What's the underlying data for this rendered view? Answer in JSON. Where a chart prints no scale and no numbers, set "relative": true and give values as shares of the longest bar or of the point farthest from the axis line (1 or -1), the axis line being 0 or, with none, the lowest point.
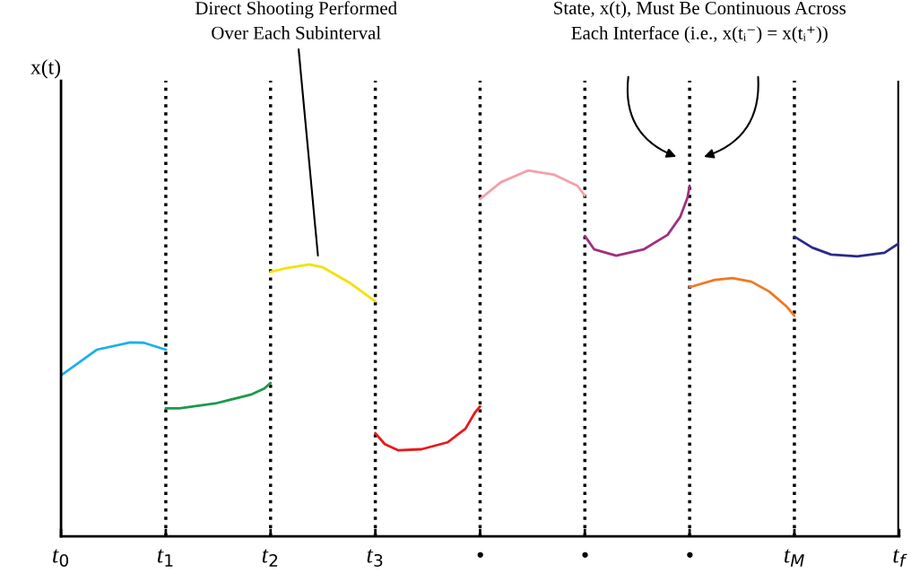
{
  "chart_data": {
    "type": "line",
    "relative": true,
    "ylabel": "x(t)",
    "xlim": [
      0,
      8
    ],
    "xticks": [
      {
        "value": 0,
        "label": "t$_{0}$"
      },
      {
        "value": 1,
        "label": "t$_{1}$"
      },
      {
        "value": 2,
        "label": "t$_{2}$"
      },
      {
        "value": 3,
        "label": "t$_{3}$"
      },
      {
        "value": 4,
        "label": "•"
      },
      {
        "value": 5,
        "label": "•"
      },
      {
        "value": 6,
        "label": "•"
      },
      {
        "value": 7,
        "label": "t$_{M}$"
      },
      {
        "value": 8,
        "label": "t$_{f}$"
      }
    ],
    "series": [
      {
        "color": "#1ab0ec",
        "x": [
          0,
          0.34,
          0.66,
          0.79,
          1
        ],
        "values": [
          0.44,
          0.51,
          0.53,
          0.529,
          0.51
        ]
      },
      {
        "color": "#1a9a4a",
        "x": [
          1,
          1.13,
          1.47,
          1.81,
          1.94,
          2
        ],
        "values": [
          0.35,
          0.35,
          0.363,
          0.387,
          0.404,
          0.419
        ]
      },
      {
        "color": "#f2e200",
        "x": [
          2,
          2.15,
          2.37,
          2.5,
          2.75,
          3
        ],
        "values": [
          0.723,
          0.733,
          0.743,
          0.735,
          0.694,
          0.642
        ]
      },
      {
        "color": "#e8181c",
        "x": [
          3,
          3.09,
          3.22,
          3.44,
          3.69,
          3.86,
          3.95,
          4
        ],
        "values": [
          0.282,
          0.252,
          0.235,
          0.238,
          0.257,
          0.294,
          0.338,
          0.355
        ]
      },
      {
        "color": "#f4a0aa",
        "x": [
          4,
          4.2,
          4.46,
          4.71,
          4.93,
          5
        ],
        "values": [
          0.922,
          0.968,
          1,
          0.988,
          0.958,
          0.931
        ]
      },
      {
        "color": "#a0307f",
        "x": [
          5,
          5.09,
          5.3,
          5.56,
          5.79,
          5.91,
          5.98,
          6
        ],
        "values": [
          0.821,
          0.784,
          0.767,
          0.784,
          0.824,
          0.873,
          0.926,
          0.958
        ]
      },
      {
        "color": "#f07820",
        "x": [
          6,
          6.24,
          6.41,
          6.59,
          6.76,
          6.93,
          7
        ],
        "values": [
          0.681,
          0.701,
          0.706,
          0.696,
          0.669,
          0.627,
          0.603
        ]
      },
      {
        "color": "#2a2a8c",
        "x": [
          7,
          7.17,
          7.35,
          7.6,
          7.86,
          8
        ],
        "values": [
          0.819,
          0.789,
          0.77,
          0.765,
          0.775,
          0.801
        ]
      }
    ],
    "ref_lines": [
      {
        "axis": "x",
        "value": 1,
        "color": "#000000",
        "line_style": "dotted"
      },
      {
        "axis": "x",
        "value": 2,
        "color": "#000000",
        "line_style": "dotted"
      },
      {
        "axis": "x",
        "value": 3,
        "color": "#000000",
        "line_style": "dotted"
      },
      {
        "axis": "x",
        "value": 4,
        "color": "#000000",
        "line_style": "dotted"
      },
      {
        "axis": "x",
        "value": 5,
        "color": "#000000",
        "line_style": "dotted"
      },
      {
        "axis": "x",
        "value": 6,
        "color": "#000000",
        "line_style": "dotted"
      },
      {
        "axis": "x",
        "value": 7,
        "color": "#000000",
        "line_style": "dotted"
      },
      {
        "axis": "x",
        "value": 8,
        "color": "#000000",
        "line_style": "solid"
      }
    ],
    "annotations": [
      "Direct Shooting Performed\nOver Each Subinterval",
      "State, x(t), Must Be Continuous Across\nEach Interface (i.e., x(tᵢ⁻) = x(tᵢ⁺))"
    ],
    "grid": false,
    "legend": false,
    "marker": "none",
    "line_style": "solid"
  }
}
